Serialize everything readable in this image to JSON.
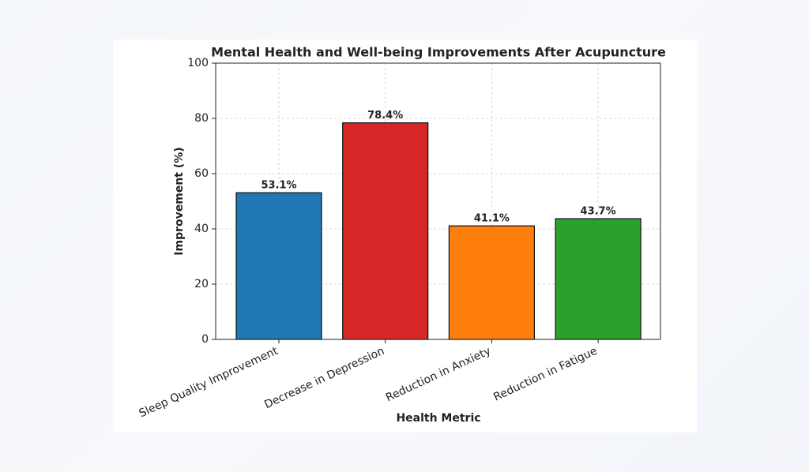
{
  "chart_data": {
    "type": "bar",
    "title": "Mental Health and Well-being Improvements After Acupuncture",
    "x_label": "Health Metric",
    "y_label": "Improvement (%)",
    "categories": [
      "Sleep Quality Improvement",
      "Decrease in Depression",
      "Reduction in Anxiety",
      "Reduction in Fatigue"
    ],
    "values": [
      53.1,
      78.4,
      41.1,
      43.7
    ],
    "value_labels": [
      "53.1%",
      "78.4%",
      "41.1%",
      "43.7%"
    ],
    "colors": [
      "#1f77b4",
      "#d62728",
      "#ff7f0e",
      "#2ca02c"
    ],
    "ylim": [
      0,
      100
    ],
    "yticks": [
      0,
      20,
      40,
      60,
      80,
      100
    ],
    "grid": true
  }
}
